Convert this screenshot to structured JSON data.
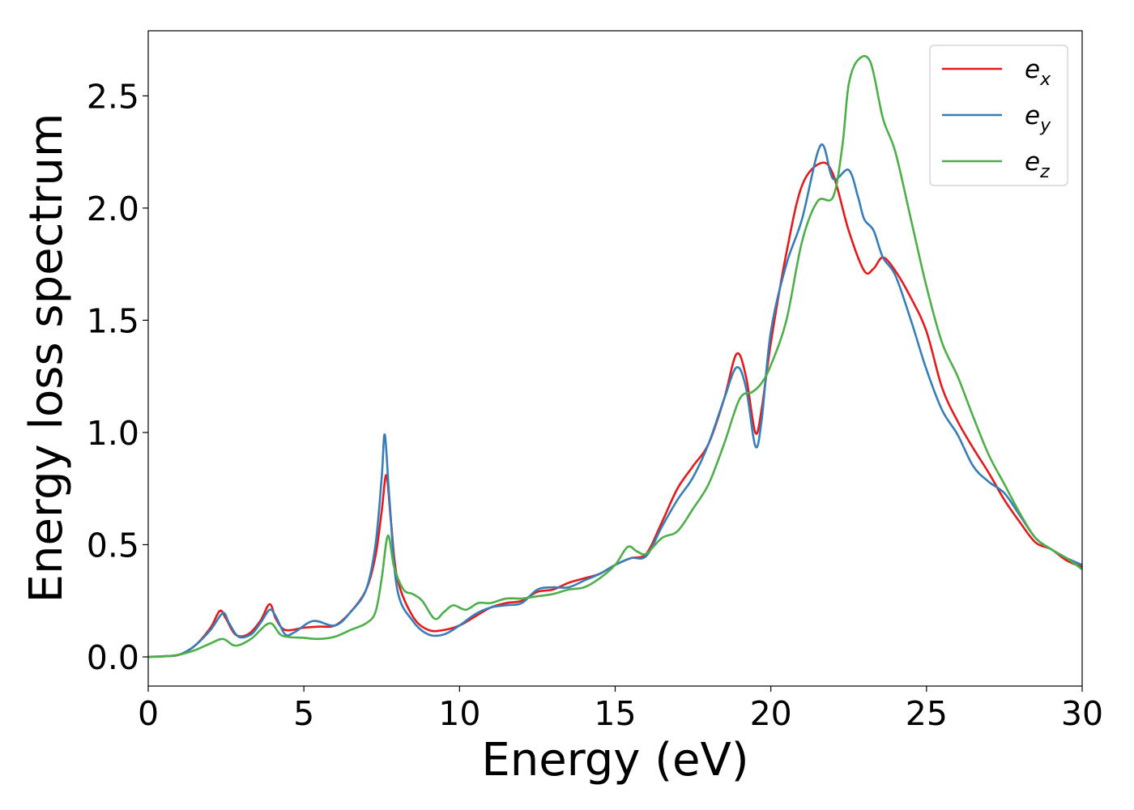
{
  "chart_data": {
    "type": "line",
    "xlabel": "Energy (eV)",
    "ylabel": "Energy loss spectrum",
    "xlim": [
      0,
      30
    ],
    "ylim": [
      -0.13,
      2.79
    ],
    "xticks": [
      0,
      5,
      10,
      15,
      20,
      25,
      30
    ],
    "xtick_labels": [
      "0",
      "5",
      "10",
      "15",
      "20",
      "25",
      "30"
    ],
    "yticks": [
      0.0,
      0.5,
      1.0,
      1.5,
      2.0,
      2.5
    ],
    "ytick_labels": [
      "0.0",
      "0.5",
      "1.0",
      "1.5",
      "2.0",
      "2.5"
    ],
    "grid": false,
    "legend_position": "top-right",
    "series": [
      {
        "name": "e_x",
        "label_base": "e",
        "label_sub": "x",
        "color": "#e41a1c",
        "points": [
          [
            0,
            0
          ],
          [
            0.5,
            0.003
          ],
          [
            1,
            0.01
          ],
          [
            1.5,
            0.05
          ],
          [
            2,
            0.13
          ],
          [
            2.3,
            0.205
          ],
          [
            2.5,
            0.17
          ],
          [
            2.8,
            0.1
          ],
          [
            3.2,
            0.1
          ],
          [
            3.6,
            0.16
          ],
          [
            3.9,
            0.235
          ],
          [
            4.1,
            0.17
          ],
          [
            4.4,
            0.12
          ],
          [
            5,
            0.13
          ],
          [
            5.5,
            0.135
          ],
          [
            6,
            0.14
          ],
          [
            6.5,
            0.2
          ],
          [
            7,
            0.3
          ],
          [
            7.3,
            0.45
          ],
          [
            7.5,
            0.65
          ],
          [
            7.65,
            0.81
          ],
          [
            7.8,
            0.6
          ],
          [
            8,
            0.35
          ],
          [
            8.5,
            0.18
          ],
          [
            9,
            0.12
          ],
          [
            9.5,
            0.12
          ],
          [
            10,
            0.14
          ],
          [
            10.5,
            0.18
          ],
          [
            11,
            0.22
          ],
          [
            11.5,
            0.24
          ],
          [
            12,
            0.25
          ],
          [
            12.5,
            0.29
          ],
          [
            13,
            0.3
          ],
          [
            13.5,
            0.33
          ],
          [
            14,
            0.35
          ],
          [
            14.5,
            0.37
          ],
          [
            15,
            0.41
          ],
          [
            15.5,
            0.44
          ],
          [
            16,
            0.46
          ],
          [
            16.5,
            0.6
          ],
          [
            17,
            0.75
          ],
          [
            17.5,
            0.85
          ],
          [
            18,
            0.95
          ],
          [
            18.5,
            1.15
          ],
          [
            18.9,
            1.35
          ],
          [
            19.2,
            1.25
          ],
          [
            19.5,
            1.0
          ],
          [
            19.7,
            1.1
          ],
          [
            20,
            1.4
          ],
          [
            20.5,
            1.8
          ],
          [
            21,
            2.1
          ],
          [
            21.6,
            2.2
          ],
          [
            22,
            2.15
          ],
          [
            22.5,
            1.9
          ],
          [
            23,
            1.72
          ],
          [
            23.3,
            1.73
          ],
          [
            23.6,
            1.78
          ],
          [
            24,
            1.72
          ],
          [
            24.5,
            1.6
          ],
          [
            25,
            1.45
          ],
          [
            25.5,
            1.2
          ],
          [
            26,
            1.05
          ],
          [
            26.5,
            0.93
          ],
          [
            27,
            0.82
          ],
          [
            27.5,
            0.7
          ],
          [
            28,
            0.6
          ],
          [
            28.5,
            0.51
          ],
          [
            29,
            0.48
          ],
          [
            29.5,
            0.43
          ],
          [
            30,
            0.4
          ]
        ]
      },
      {
        "name": "e_y",
        "label_base": "e",
        "label_sub": "y",
        "color": "#377eb8",
        "points": [
          [
            0,
            0
          ],
          [
            0.5,
            0.003
          ],
          [
            1,
            0.01
          ],
          [
            1.5,
            0.05
          ],
          [
            2,
            0.12
          ],
          [
            2.4,
            0.195
          ],
          [
            2.6,
            0.15
          ],
          [
            2.9,
            0.09
          ],
          [
            3.3,
            0.1
          ],
          [
            3.6,
            0.15
          ],
          [
            3.9,
            0.21
          ],
          [
            4.1,
            0.18
          ],
          [
            4.4,
            0.1
          ],
          [
            4.7,
            0.11
          ],
          [
            5.3,
            0.16
          ],
          [
            6,
            0.14
          ],
          [
            6.5,
            0.2
          ],
          [
            7,
            0.3
          ],
          [
            7.3,
            0.5
          ],
          [
            7.5,
            0.8
          ],
          [
            7.6,
            0.99
          ],
          [
            7.75,
            0.7
          ],
          [
            8,
            0.3
          ],
          [
            8.5,
            0.16
          ],
          [
            9,
            0.1
          ],
          [
            9.5,
            0.1
          ],
          [
            10,
            0.14
          ],
          [
            10.5,
            0.19
          ],
          [
            11,
            0.22
          ],
          [
            11.5,
            0.23
          ],
          [
            12,
            0.24
          ],
          [
            12.5,
            0.3
          ],
          [
            13,
            0.31
          ],
          [
            13.5,
            0.31
          ],
          [
            14,
            0.34
          ],
          [
            14.5,
            0.37
          ],
          [
            15,
            0.41
          ],
          [
            15.5,
            0.44
          ],
          [
            16,
            0.45
          ],
          [
            16.5,
            0.58
          ],
          [
            17,
            0.7
          ],
          [
            17.5,
            0.8
          ],
          [
            18,
            0.95
          ],
          [
            18.5,
            1.15
          ],
          [
            18.9,
            1.29
          ],
          [
            19.2,
            1.2
          ],
          [
            19.5,
            0.94
          ],
          [
            19.7,
            1.05
          ],
          [
            20,
            1.45
          ],
          [
            20.5,
            1.75
          ],
          [
            21,
            1.95
          ],
          [
            21.6,
            2.28
          ],
          [
            22,
            2.13
          ],
          [
            22.5,
            2.17
          ],
          [
            22.8,
            2.05
          ],
          [
            23,
            1.95
          ],
          [
            23.3,
            1.9
          ],
          [
            23.6,
            1.78
          ],
          [
            24,
            1.7
          ],
          [
            24.5,
            1.5
          ],
          [
            25,
            1.28
          ],
          [
            25.5,
            1.1
          ],
          [
            26,
            0.99
          ],
          [
            26.5,
            0.85
          ],
          [
            27,
            0.78
          ],
          [
            27.5,
            0.73
          ],
          [
            28,
            0.63
          ],
          [
            28.5,
            0.53
          ],
          [
            29,
            0.48
          ],
          [
            29.5,
            0.44
          ],
          [
            30,
            0.41
          ]
        ]
      },
      {
        "name": "e_z",
        "label_base": "e",
        "label_sub": "z",
        "color": "#4daf4a",
        "points": [
          [
            0,
            0
          ],
          [
            0.5,
            0.002
          ],
          [
            1,
            0.01
          ],
          [
            1.5,
            0.03
          ],
          [
            2,
            0.06
          ],
          [
            2.4,
            0.08
          ],
          [
            2.8,
            0.05
          ],
          [
            3.3,
            0.08
          ],
          [
            3.9,
            0.15
          ],
          [
            4.3,
            0.095
          ],
          [
            5,
            0.085
          ],
          [
            5.5,
            0.08
          ],
          [
            6,
            0.09
          ],
          [
            6.5,
            0.12
          ],
          [
            7,
            0.15
          ],
          [
            7.3,
            0.2
          ],
          [
            7.5,
            0.35
          ],
          [
            7.7,
            0.54
          ],
          [
            7.9,
            0.4
          ],
          [
            8.2,
            0.3
          ],
          [
            8.5,
            0.28
          ],
          [
            8.8,
            0.25
          ],
          [
            9.2,
            0.17
          ],
          [
            9.5,
            0.2
          ],
          [
            9.8,
            0.23
          ],
          [
            10.2,
            0.21
          ],
          [
            10.6,
            0.24
          ],
          [
            11,
            0.24
          ],
          [
            11.5,
            0.26
          ],
          [
            12,
            0.26
          ],
          [
            12.5,
            0.27
          ],
          [
            13,
            0.28
          ],
          [
            13.5,
            0.3
          ],
          [
            14,
            0.31
          ],
          [
            14.5,
            0.35
          ],
          [
            15,
            0.41
          ],
          [
            15.4,
            0.49
          ],
          [
            15.7,
            0.47
          ],
          [
            16,
            0.46
          ],
          [
            16.5,
            0.53
          ],
          [
            17,
            0.56
          ],
          [
            17.5,
            0.66
          ],
          [
            18,
            0.77
          ],
          [
            18.5,
            0.95
          ],
          [
            19,
            1.15
          ],
          [
            19.4,
            1.18
          ],
          [
            19.7,
            1.22
          ],
          [
            20,
            1.3
          ],
          [
            20.5,
            1.5
          ],
          [
            21,
            1.85
          ],
          [
            21.5,
            2.03
          ],
          [
            22,
            2.05
          ],
          [
            22.3,
            2.28
          ],
          [
            22.5,
            2.55
          ],
          [
            22.8,
            2.66
          ],
          [
            23.2,
            2.65
          ],
          [
            23.6,
            2.4
          ],
          [
            24,
            2.25
          ],
          [
            24.5,
            1.95
          ],
          [
            25,
            1.65
          ],
          [
            25.5,
            1.4
          ],
          [
            26,
            1.25
          ],
          [
            26.5,
            1.07
          ],
          [
            27,
            0.9
          ],
          [
            27.5,
            0.77
          ],
          [
            28,
            0.64
          ],
          [
            28.5,
            0.53
          ],
          [
            29,
            0.48
          ],
          [
            29.5,
            0.44
          ],
          [
            30,
            0.39
          ]
        ]
      }
    ]
  }
}
